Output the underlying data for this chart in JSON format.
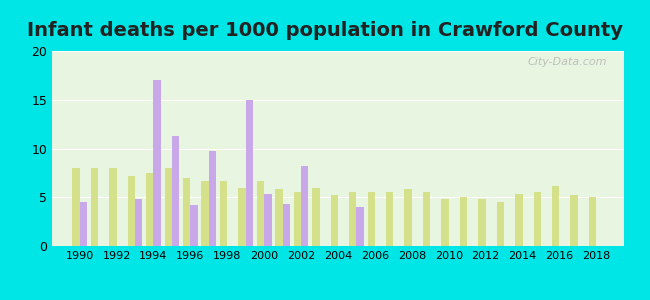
{
  "title": "Infant deaths per 1000 population in Crawford County",
  "years": [
    1990,
    1991,
    1992,
    1993,
    1994,
    1995,
    1996,
    1997,
    1998,
    1999,
    2000,
    2001,
    2002,
    2003,
    2004,
    2005,
    2006,
    2007,
    2008,
    2009,
    2010,
    2011,
    2012,
    2013,
    2014,
    2015,
    2016,
    2017,
    2018
  ],
  "crawford": [
    4.5,
    0,
    0,
    4.8,
    17.0,
    11.3,
    4.2,
    9.7,
    0,
    15.0,
    5.3,
    4.3,
    8.2,
    0,
    0,
    4.0,
    0,
    0,
    0,
    0,
    0,
    0,
    0,
    0,
    0,
    0,
    0,
    0,
    0
  ],
  "iowa": [
    8.0,
    8.0,
    8.0,
    7.2,
    7.5,
    8.0,
    7.0,
    6.7,
    6.7,
    6.0,
    6.7,
    5.8,
    5.5,
    6.0,
    5.2,
    5.5,
    5.5,
    5.5,
    5.8,
    5.5,
    4.8,
    5.0,
    4.8,
    4.5,
    5.3,
    5.5,
    6.2,
    5.2,
    5.0
  ],
  "crawford_color": "#c8a8e8",
  "iowa_color": "#d4e08a",
  "background_color": "#e8f5e0",
  "outer_background": "#00e5e5",
  "ylim": [
    0,
    20
  ],
  "yticks": [
    0,
    5,
    10,
    15,
    20
  ],
  "bar_width": 0.4,
  "title_fontsize": 14,
  "watermark": "City-Data.com"
}
